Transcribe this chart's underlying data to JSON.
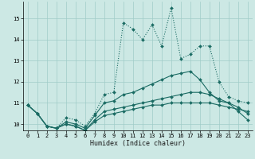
{
  "title": "",
  "xlabel": "Humidex (Indice chaleur)",
  "xlim": [
    -0.5,
    23.5
  ],
  "ylim": [
    9.7,
    15.8
  ],
  "yticks": [
    10,
    11,
    12,
    13,
    14,
    15
  ],
  "xticks": [
    0,
    1,
    2,
    3,
    4,
    5,
    6,
    7,
    8,
    9,
    10,
    11,
    12,
    13,
    14,
    15,
    16,
    17,
    18,
    19,
    20,
    21,
    22,
    23
  ],
  "bg_color": "#cce8e4",
  "grid_color": "#a0ccc8",
  "line_color": "#1a6b63",
  "series": [
    [
      10.9,
      10.5,
      9.9,
      9.8,
      10.3,
      10.2,
      9.9,
      10.5,
      11.4,
      11.5,
      14.8,
      14.5,
      14.0,
      14.7,
      13.7,
      15.5,
      13.1,
      13.3,
      13.7,
      13.7,
      12.0,
      11.3,
      11.1,
      11.0
    ],
    [
      10.9,
      10.5,
      9.9,
      9.8,
      10.1,
      10.0,
      9.8,
      10.4,
      11.0,
      11.1,
      11.4,
      11.5,
      11.7,
      11.9,
      12.1,
      12.3,
      12.4,
      12.5,
      12.1,
      11.5,
      11.1,
      11.0,
      10.6,
      10.2
    ],
    [
      10.9,
      10.5,
      9.9,
      9.8,
      10.0,
      9.9,
      9.7,
      10.2,
      10.6,
      10.7,
      10.8,
      10.9,
      11.0,
      11.1,
      11.2,
      11.3,
      11.4,
      11.5,
      11.5,
      11.4,
      11.2,
      11.0,
      10.8,
      10.5
    ],
    [
      10.9,
      10.5,
      9.9,
      9.8,
      10.0,
      9.9,
      9.7,
      10.1,
      10.4,
      10.5,
      10.6,
      10.7,
      10.8,
      10.9,
      10.9,
      11.0,
      11.0,
      11.0,
      11.0,
      11.0,
      10.9,
      10.8,
      10.7,
      10.6
    ]
  ],
  "linestyles": [
    "dotted",
    "solid",
    "solid",
    "solid"
  ],
  "linewidths": [
    0.8,
    0.8,
    0.8,
    0.8
  ]
}
